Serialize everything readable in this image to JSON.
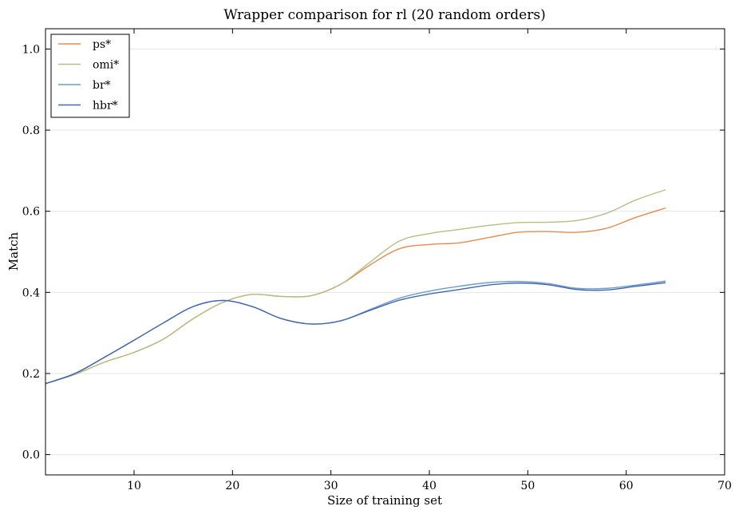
{
  "chart_data": {
    "type": "line",
    "title": "Wrapper comparison for rl (20 random orders)",
    "xlabel": "Size of training set",
    "ylabel": "Match",
    "xlim": [
      1,
      70
    ],
    "ylim": [
      -0.05,
      1.05
    ],
    "x_ticks": [
      10,
      20,
      30,
      40,
      50,
      60,
      70
    ],
    "y_ticks": [
      0.0,
      0.2,
      0.4,
      0.6,
      0.8,
      1.0
    ],
    "x_tick_labels": [
      "10",
      "20",
      "30",
      "40",
      "50",
      "60",
      "70"
    ],
    "y_tick_labels": [
      "0.0",
      "0.2",
      "0.4",
      "0.6",
      "0.8",
      "1.0"
    ],
    "grid": "horizontal",
    "legend_position": "top-left",
    "x": [
      1,
      4,
      7,
      10,
      13,
      16,
      19,
      22,
      25,
      28,
      31,
      34,
      37,
      40,
      43,
      46,
      49,
      52,
      55,
      58,
      61,
      64
    ],
    "series": [
      {
        "name": "ps*",
        "color": "#e8894f",
        "values": [
          0.175,
          0.198,
          0.228,
          0.252,
          0.285,
          0.335,
          0.375,
          0.395,
          0.39,
          0.392,
          0.42,
          0.468,
          0.508,
          0.518,
          0.522,
          0.535,
          0.548,
          0.55,
          0.548,
          0.558,
          0.585,
          0.608
        ]
      },
      {
        "name": "omi*",
        "color": "#b4bf87",
        "values": [
          0.175,
          0.198,
          0.228,
          0.252,
          0.285,
          0.335,
          0.375,
          0.395,
          0.39,
          0.392,
          0.42,
          0.475,
          0.527,
          0.545,
          0.555,
          0.565,
          0.572,
          0.573,
          0.577,
          0.595,
          0.628,
          0.653
        ]
      },
      {
        "name": "br*",
        "color": "#6e9dc9",
        "values": [
          0.175,
          0.2,
          0.24,
          0.282,
          0.325,
          0.365,
          0.38,
          0.365,
          0.335,
          0.322,
          0.33,
          0.358,
          0.386,
          0.403,
          0.415,
          0.424,
          0.427,
          0.422,
          0.41,
          0.41,
          0.418,
          0.428
        ]
      },
      {
        "name": "hbr*",
        "color": "#4565ad",
        "values": [
          0.175,
          0.2,
          0.24,
          0.282,
          0.325,
          0.365,
          0.38,
          0.365,
          0.335,
          0.322,
          0.33,
          0.356,
          0.381,
          0.396,
          0.407,
          0.418,
          0.423,
          0.419,
          0.407,
          0.406,
          0.415,
          0.424
        ]
      }
    ]
  }
}
